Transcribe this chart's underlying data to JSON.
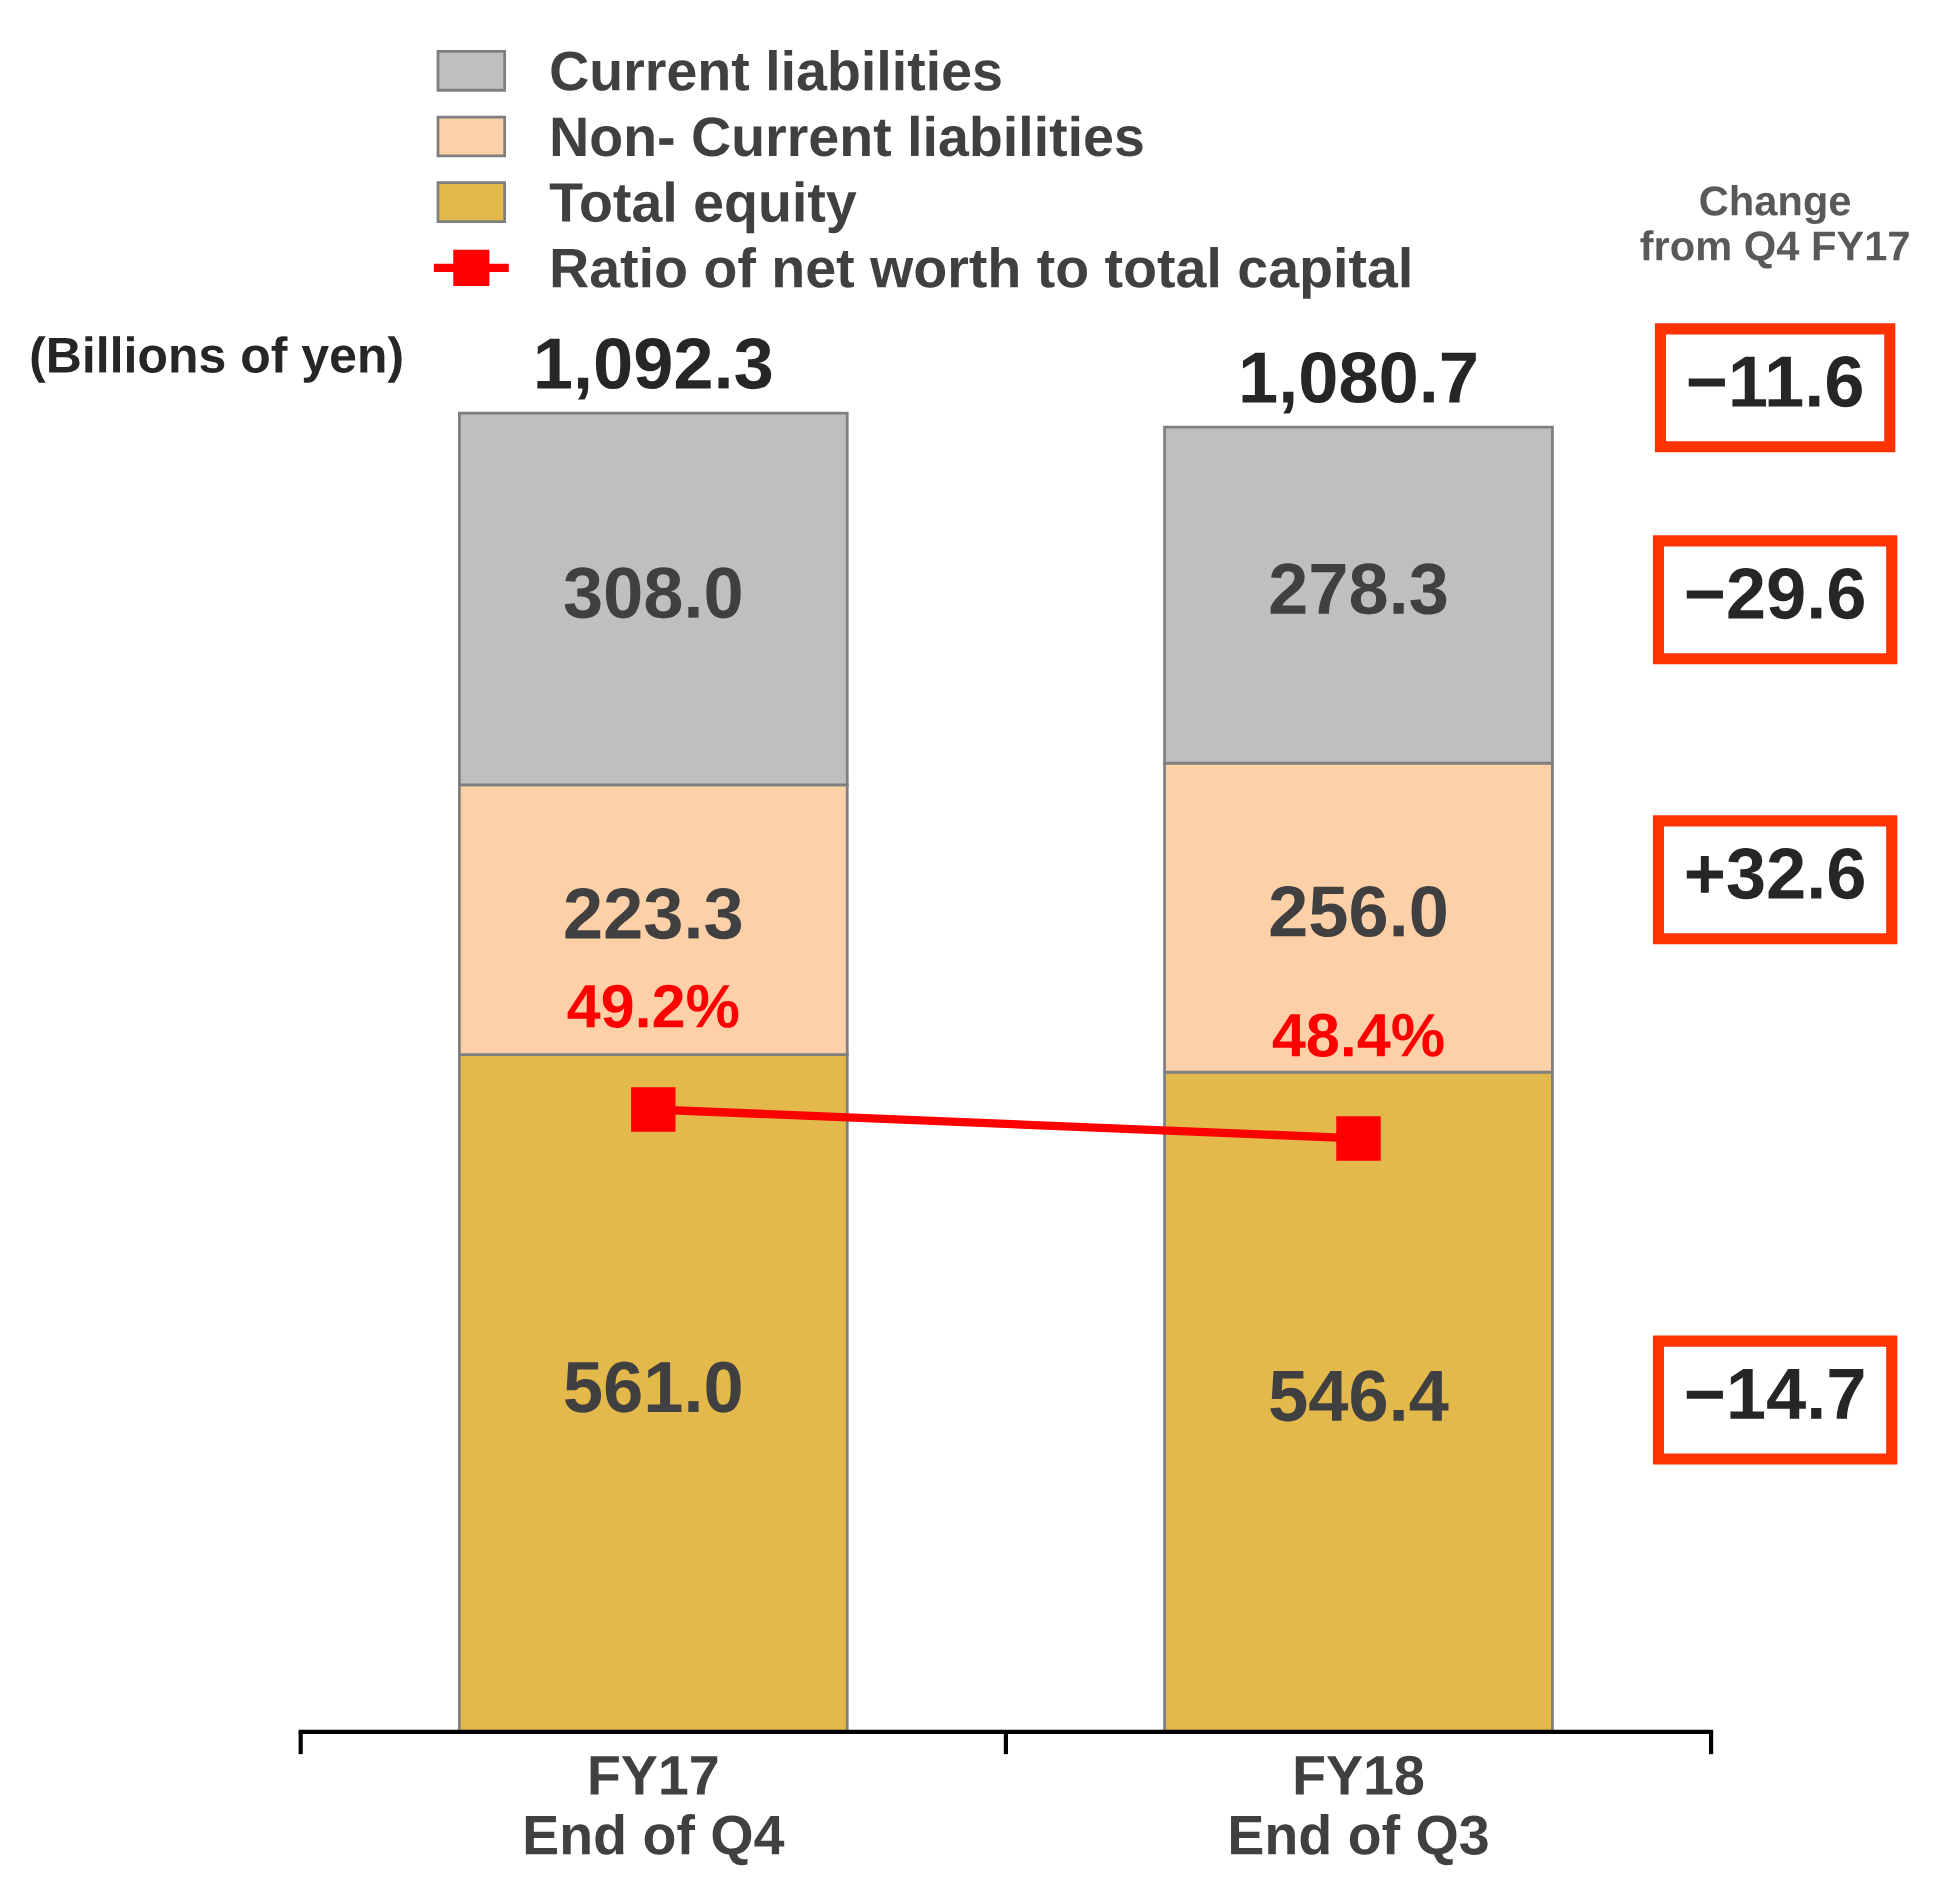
{
  "chart_data": {
    "type": "bar",
    "stacked": true,
    "categories": [
      "FY17\nEnd of Q4",
      "FY18\nEnd of Q3"
    ],
    "series": [
      {
        "name": "Total equity",
        "color": "#e2b94a",
        "values": [
          561.0,
          546.4
        ],
        "value_labels": [
          "561.0",
          "546.4"
        ]
      },
      {
        "name": "Non- Current liabilities",
        "color": "#fdd0a8",
        "values": [
          223.3,
          256.0
        ],
        "value_labels": [
          "223.3",
          "256.0"
        ]
      },
      {
        "name": "Current liabilities",
        "color": "#bfbfbf",
        "values": [
          308.0,
          278.3
        ],
        "value_labels": [
          "308.0",
          "278.3"
        ]
      },
      {
        "name": "Ratio of net worth to total capital",
        "type": "line",
        "axis": "y2",
        "color": "#ff0000",
        "marker": "square",
        "values": [
          49.2,
          48.4
        ],
        "value_labels": [
          "49.2%",
          "48.4%"
        ]
      }
    ],
    "totals": [
      "1,092.3",
      "1,080.7"
    ],
    "ylim": [
      0,
      1100
    ],
    "y2lim": [
      32,
      68.7
    ],
    "tick_labels": "x",
    "grid": false,
    "legend": "top",
    "annotations": [
      "(Billions of yen)",
      "Change\nfrom Q4 FY17",
      "−11.6",
      "−29.6",
      "+32.6",
      "−14.7"
    ]
  }
}
